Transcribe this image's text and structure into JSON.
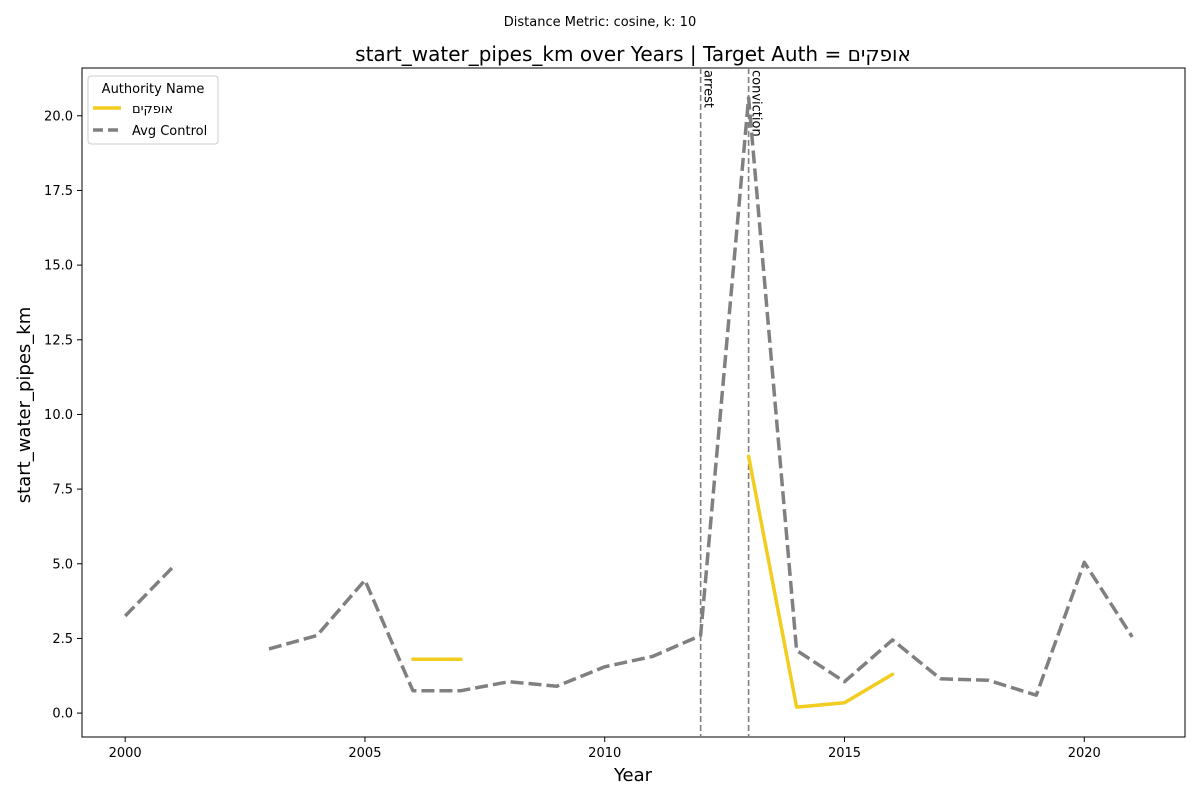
{
  "suptitle": "Distance Metric: cosine, k: 10",
  "chart_data": {
    "type": "line",
    "title": "start_water_pipes_km over Years | Target Auth = אופקים",
    "xlabel": "Year",
    "ylabel": "start_water_pipes_km",
    "xlim": [
      1999.1,
      2022.1
    ],
    "ylim": [
      -0.8,
      21.6
    ],
    "xticks": [
      2000,
      2005,
      2010,
      2015,
      2020
    ],
    "yticks": [
      0.0,
      2.5,
      5.0,
      7.5,
      10.0,
      12.5,
      15.0,
      17.5,
      20.0
    ],
    "ytick_labels": [
      "0.0",
      "2.5",
      "5.0",
      "7.5",
      "10.0",
      "12.5",
      "15.0",
      "17.5",
      "20.0"
    ],
    "grid": false,
    "legend": {
      "title": "Authority Name",
      "placement": "upper-left"
    },
    "series": [
      {
        "name": "אופקים",
        "color": "#F2CC1F",
        "style": "solid",
        "points": [
          [
            2006,
            1.8
          ],
          [
            2007,
            1.8
          ],
          [
            2008,
            null
          ],
          [
            2009,
            null
          ],
          [
            2010,
            null
          ],
          [
            2011,
            null
          ],
          [
            2012,
            null
          ],
          [
            2013,
            8.6
          ],
          [
            2014,
            0.2
          ],
          [
            2015,
            0.35
          ],
          [
            2016,
            1.3
          ]
        ]
      },
      {
        "name": "Avg Control",
        "color": "#808080",
        "style": "dashed",
        "points": [
          [
            2000,
            3.25
          ],
          [
            2001,
            4.9
          ],
          [
            2002,
            null
          ],
          [
            2003,
            2.15
          ],
          [
            2004,
            2.6
          ],
          [
            2005,
            4.45
          ],
          [
            2006,
            0.75
          ],
          [
            2007,
            0.75
          ],
          [
            2008,
            1.05
          ],
          [
            2009,
            0.9
          ],
          [
            2010,
            1.55
          ],
          [
            2011,
            1.9
          ],
          [
            2012,
            2.6
          ],
          [
            2013,
            20.6
          ],
          [
            2014,
            2.1
          ],
          [
            2015,
            1.05
          ],
          [
            2016,
            2.45
          ],
          [
            2017,
            1.15
          ],
          [
            2018,
            1.1
          ],
          [
            2019,
            0.6
          ],
          [
            2020,
            5.05
          ],
          [
            2021,
            2.55
          ]
        ]
      }
    ],
    "vlines": [
      {
        "x": 2012,
        "label": "arrest",
        "color": "#808080"
      },
      {
        "x": 2013,
        "label": "conviction",
        "color": "#808080"
      }
    ]
  }
}
